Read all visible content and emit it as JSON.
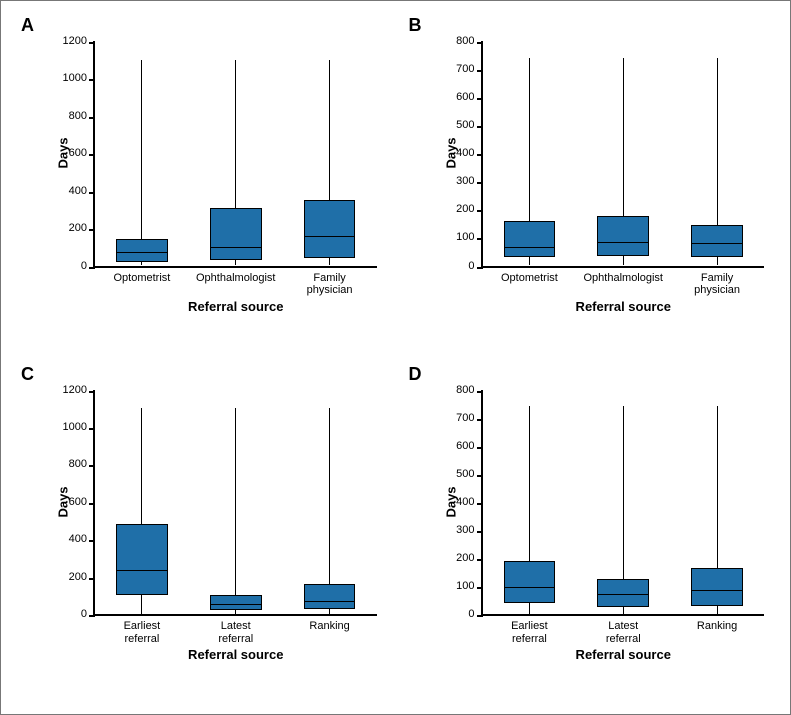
{
  "figure": {
    "outer_border_color": "#777777",
    "background_color": "#ffffff"
  },
  "shared": {
    "y_label": "Days",
    "x_label": "Referral source",
    "box_fill": "#1f6fa8",
    "box_border": "#000000",
    "whisker_color": "#000000",
    "axis_color": "#000000",
    "label_fontsize": 13,
    "tick_fontsize": 11,
    "panel_label_fontsize": 18
  },
  "panels": [
    {
      "id": "A",
      "ylim": [
        0,
        1200
      ],
      "ytick_step": 200,
      "categories": [
        "Optometrist",
        "Ophthalmologist",
        "Family physician"
      ],
      "category_multi": [
        false,
        false,
        true
      ],
      "category_labels_split": [
        "Optometrist",
        "Ophthalmologist",
        "Family\nphysician"
      ],
      "boxes": [
        {
          "q1": 20,
          "median": 70,
          "q3": 140,
          "whisker_low": 0,
          "whisker_high": 1100
        },
        {
          "q1": 30,
          "median": 100,
          "q3": 310,
          "whisker_low": 0,
          "whisker_high": 1100
        },
        {
          "q1": 40,
          "median": 160,
          "q3": 350,
          "whisker_low": 0,
          "whisker_high": 1100
        }
      ]
    },
    {
      "id": "B",
      "ylim": [
        0,
        800
      ],
      "ytick_step": 100,
      "categories": [
        "Optometrist",
        "Ophthalmologist",
        "Family physician"
      ],
      "category_multi": [
        false,
        false,
        true
      ],
      "category_labels_split": [
        "Optometrist",
        "Ophthalmologist",
        "Family\nphysician"
      ],
      "boxes": [
        {
          "q1": 30,
          "median": 65,
          "q3": 160,
          "whisker_low": 0,
          "whisker_high": 740
        },
        {
          "q1": 35,
          "median": 85,
          "q3": 175,
          "whisker_low": 0,
          "whisker_high": 740
        },
        {
          "q1": 30,
          "median": 80,
          "q3": 145,
          "whisker_low": 0,
          "whisker_high": 740
        }
      ]
    },
    {
      "id": "C",
      "ylim": [
        0,
        1200
      ],
      "ytick_step": 200,
      "categories": [
        "Earliest referral",
        "Latest referral",
        "Ranking"
      ],
      "category_multi": [
        true,
        true,
        false
      ],
      "category_labels_split": [
        "Earliest\nreferral",
        "Latest\nreferral",
        "Ranking"
      ],
      "boxes": [
        {
          "q1": 100,
          "median": 235,
          "q3": 480,
          "whisker_low": 0,
          "whisker_high": 1100
        },
        {
          "q1": 20,
          "median": 55,
          "q3": 100,
          "whisker_low": 0,
          "whisker_high": 1100
        },
        {
          "q1": 25,
          "median": 70,
          "q3": 160,
          "whisker_low": 0,
          "whisker_high": 1100
        }
      ]
    },
    {
      "id": "D",
      "ylim": [
        0,
        800
      ],
      "ytick_step": 100,
      "categories": [
        "Earliest referral",
        "Latest referral",
        "Ranking"
      ],
      "category_multi": [
        true,
        true,
        false
      ],
      "category_labels_split": [
        "Earliest\nreferral",
        "Latest\nreferral",
        "Ranking"
      ],
      "boxes": [
        {
          "q1": 40,
          "median": 95,
          "q3": 190,
          "whisker_low": 0,
          "whisker_high": 740
        },
        {
          "q1": 25,
          "median": 70,
          "q3": 125,
          "whisker_low": 0,
          "whisker_high": 740
        },
        {
          "q1": 30,
          "median": 85,
          "q3": 165,
          "whisker_low": 0,
          "whisker_high": 740
        }
      ]
    }
  ]
}
